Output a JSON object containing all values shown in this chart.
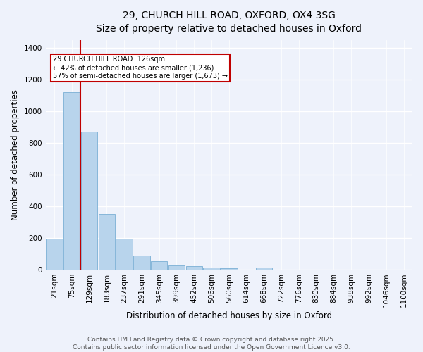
{
  "title_line1": "29, CHURCH HILL ROAD, OXFORD, OX4 3SG",
  "title_line2": "Size of property relative to detached houses in Oxford",
  "xlabel": "Distribution of detached houses by size in Oxford",
  "ylabel": "Number of detached properties",
  "categories": [
    "21sqm",
    "75sqm",
    "129sqm",
    "183sqm",
    "237sqm",
    "291sqm",
    "345sqm",
    "399sqm",
    "452sqm",
    "506sqm",
    "560sqm",
    "614sqm",
    "668sqm",
    "722sqm",
    "776sqm",
    "830sqm",
    "884sqm",
    "938sqm",
    "992sqm",
    "1046sqm",
    "1100sqm"
  ],
  "values": [
    195,
    1120,
    870,
    350,
    195,
    90,
    55,
    25,
    20,
    15,
    10,
    0,
    12,
    0,
    0,
    0,
    0,
    0,
    0,
    0,
    0
  ],
  "bar_color": "#b8d4ec",
  "bar_edge_color": "#7aafd4",
  "vline_color": "#c00000",
  "annotation_text": "29 CHURCH HILL ROAD: 126sqm\n← 42% of detached houses are smaller (1,236)\n57% of semi-detached houses are larger (1,673) →",
  "annotation_box_color": "#ffffff",
  "annotation_box_edge_color": "#c00000",
  "ylim": [
    0,
    1450
  ],
  "yticks": [
    0,
    200,
    400,
    600,
    800,
    1000,
    1200,
    1400
  ],
  "background_color": "#eef2fb",
  "grid_color": "#ffffff",
  "title_fontsize": 10,
  "tick_fontsize": 7.5,
  "label_fontsize": 8.5,
  "footer_fontsize": 6.5,
  "footer_text": "Contains HM Land Registry data © Crown copyright and database right 2025.\nContains public sector information licensed under the Open Government Licence v3.0."
}
